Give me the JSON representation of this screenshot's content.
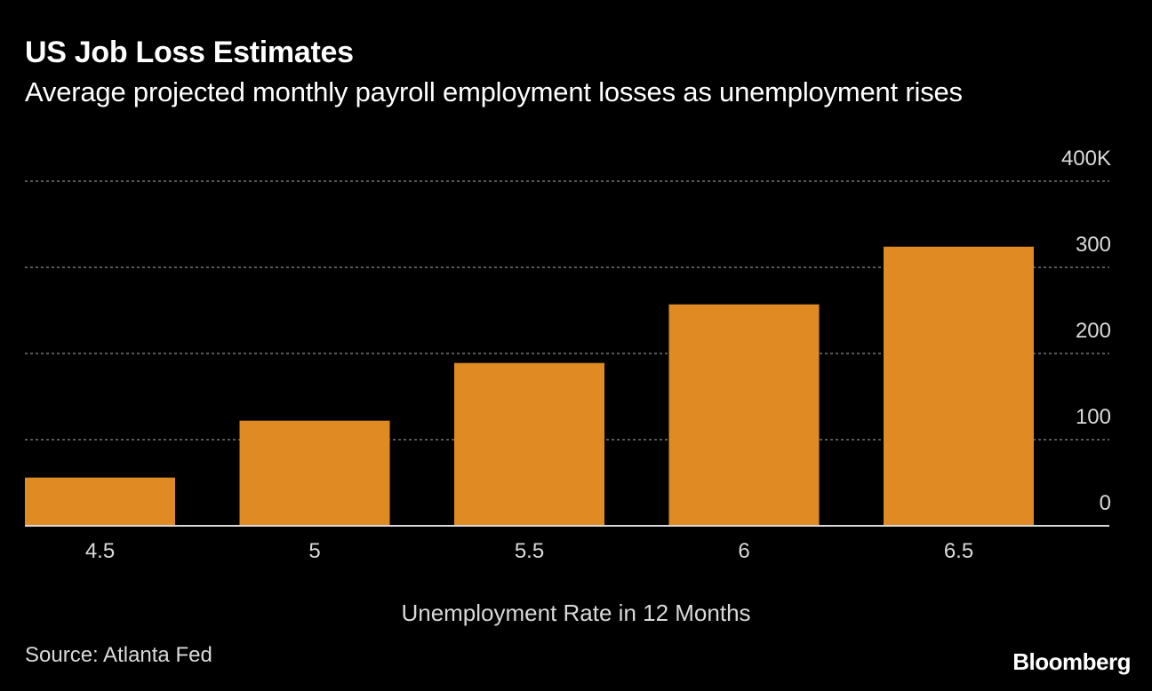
{
  "chart_data": {
    "type": "bar",
    "title": "US Job Loss Estimates",
    "subtitle": "Average projected monthly payroll employment losses as unemployment rises",
    "categories": [
      "4.5",
      "5",
      "5.5",
      "6",
      "6.5"
    ],
    "values": [
      56,
      122,
      189,
      257,
      324
    ],
    "xlabel": "Unemployment Rate in 12 Months",
    "ylabel": "",
    "ylim": [
      0,
      400
    ],
    "yticks": [
      {
        "value": 0,
        "label": "0"
      },
      {
        "value": 100,
        "label": "100"
      },
      {
        "value": 200,
        "label": "200"
      },
      {
        "value": 300,
        "label": "300"
      },
      {
        "value": 400,
        "label": "400K"
      }
    ],
    "grid": true,
    "bar_color": "#E08A24",
    "source": "Source: Atlanta Fed",
    "brand": "Bloomberg"
  }
}
